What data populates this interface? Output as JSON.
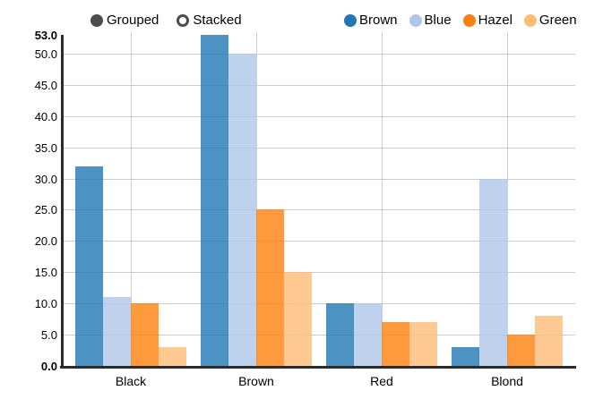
{
  "mode_toggle": {
    "options": [
      {
        "label": "Grouped",
        "selected": true
      },
      {
        "label": "Stacked",
        "selected": false
      }
    ]
  },
  "legend": {
    "position": "top-right",
    "items": [
      {
        "label": "Brown",
        "color": "#1f77b4"
      },
      {
        "label": "Blue",
        "color": "#aec7e8"
      },
      {
        "label": "Hazel",
        "color": "#ff7f0e"
      },
      {
        "label": "Green",
        "color": "#ffbb78"
      }
    ]
  },
  "chart_data": {
    "type": "bar",
    "mode": "grouped",
    "title": "",
    "xlabel": "",
    "ylabel": "",
    "categories": [
      "Black",
      "Brown",
      "Red",
      "Blond"
    ],
    "series": [
      {
        "name": "Brown",
        "color": "#1f77b4",
        "values": [
          32,
          53,
          10,
          3
        ]
      },
      {
        "name": "Blue",
        "color": "#aec7e8",
        "values": [
          11,
          50,
          10,
          30
        ]
      },
      {
        "name": "Hazel",
        "color": "#ff7f0e",
        "values": [
          10,
          25,
          7,
          5
        ]
      },
      {
        "name": "Green",
        "color": "#ffbb78",
        "values": [
          3,
          15,
          7,
          8
        ]
      }
    ],
    "ylim": [
      0,
      53
    ],
    "y_ticks": [
      0,
      5,
      10,
      15,
      20,
      25,
      30,
      35,
      40,
      45,
      50,
      53
    ],
    "y_tick_labels": [
      "0.0",
      "5.0",
      "10.0",
      "15.0",
      "20.0",
      "25.0",
      "30.0",
      "35.0",
      "40.0",
      "45.0",
      "50.0",
      "53.0"
    ],
    "grid": true,
    "bar_fill_opacity": 0.8,
    "axis_color": "#2b2b2b",
    "grid_color": "#cccccc",
    "control_color": "#4d4d4d",
    "legend_position": "top"
  }
}
